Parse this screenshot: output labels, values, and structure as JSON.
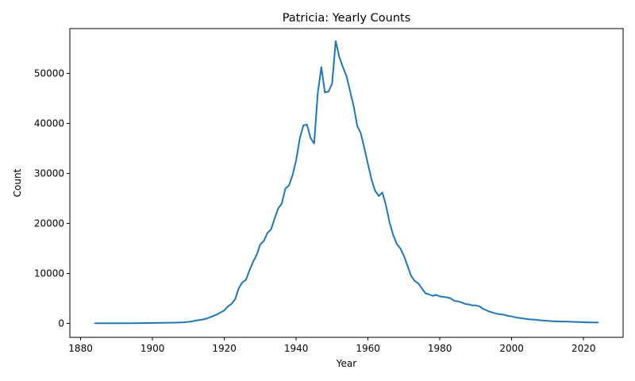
{
  "chart_data": {
    "type": "line",
    "title": "Patricia: Yearly Counts",
    "xlabel": "Year",
    "ylabel": "Count",
    "xlim": [
      1877,
      2031
    ],
    "ylim": [
      -2800,
      59000
    ],
    "xticks": [
      1880,
      1900,
      1920,
      1940,
      1960,
      1980,
      2000,
      2020
    ],
    "yticks": [
      0,
      10000,
      20000,
      30000,
      40000,
      50000
    ],
    "grid": false,
    "colors": {
      "line": "#1f77b4"
    },
    "series": [
      {
        "x": [
          1884,
          1886,
          1888,
          1890,
          1892,
          1894,
          1896,
          1898,
          1900,
          1902,
          1904,
          1906,
          1908,
          1909,
          1910,
          1911,
          1912,
          1913,
          1914,
          1915,
          1916,
          1917,
          1918,
          1919,
          1920,
          1921,
          1922,
          1923,
          1924,
          1925,
          1926,
          1927,
          1928,
          1929,
          1930,
          1931,
          1932,
          1933,
          1934,
          1935,
          1936,
          1937,
          1938,
          1939,
          1940,
          1941,
          1942,
          1943,
          1944,
          1945,
          1946,
          1947,
          1948,
          1949,
          1950,
          1951,
          1952,
          1953,
          1954,
          1955,
          1956,
          1957,
          1958,
          1959,
          1960,
          1961,
          1962,
          1963,
          1964,
          1965,
          1966,
          1967,
          1968,
          1969,
          1970,
          1971,
          1972,
          1973,
          1974,
          1975,
          1976,
          1977,
          1978,
          1979,
          1980,
          1981,
          1982,
          1983,
          1984,
          1985,
          1986,
          1987,
          1988,
          1989,
          1990,
          1991,
          1992,
          1993,
          1994,
          1995,
          1996,
          1997,
          1998,
          1999,
          2000,
          2001,
          2002,
          2003,
          2004,
          2005,
          2006,
          2007,
          2008,
          2009,
          2010,
          2011,
          2012,
          2013,
          2014,
          2015,
          2016,
          2017,
          2018,
          2019,
          2020,
          2021,
          2022,
          2023,
          2024
        ],
        "values": [
          10,
          10,
          15,
          20,
          25,
          30,
          40,
          50,
          70,
          90,
          110,
          130,
          180,
          220,
          300,
          400,
          550,
          650,
          780,
          950,
          1200,
          1500,
          1800,
          2200,
          2600,
          3400,
          3900,
          4800,
          7000,
          8200,
          8700,
          10600,
          12300,
          13700,
          15800,
          16500,
          18100,
          18800,
          21000,
          23000,
          24000,
          27000,
          27600,
          29700,
          32700,
          37000,
          39600,
          39800,
          37100,
          36000,
          46000,
          51300,
          46200,
          46400,
          48000,
          56500,
          53300,
          51300,
          49500,
          46500,
          43500,
          39500,
          38000,
          35000,
          31800,
          28700,
          26500,
          25500,
          26200,
          23600,
          20200,
          17700,
          15900,
          15000,
          13500,
          11500,
          9500,
          8500,
          8000,
          7000,
          6000,
          5800,
          5500,
          5700,
          5400,
          5300,
          5200,
          5000,
          4500,
          4400,
          4200,
          3900,
          3800,
          3600,
          3600,
          3400,
          2900,
          2600,
          2300,
          2100,
          1900,
          1800,
          1700,
          1500,
          1400,
          1200,
          1100,
          1000,
          900,
          800,
          750,
          700,
          600,
          550,
          500,
          450,
          400,
          400,
          350,
          350,
          330,
          300,
          280,
          250,
          220,
          200,
          180,
          170,
          160
        ]
      }
    ]
  }
}
